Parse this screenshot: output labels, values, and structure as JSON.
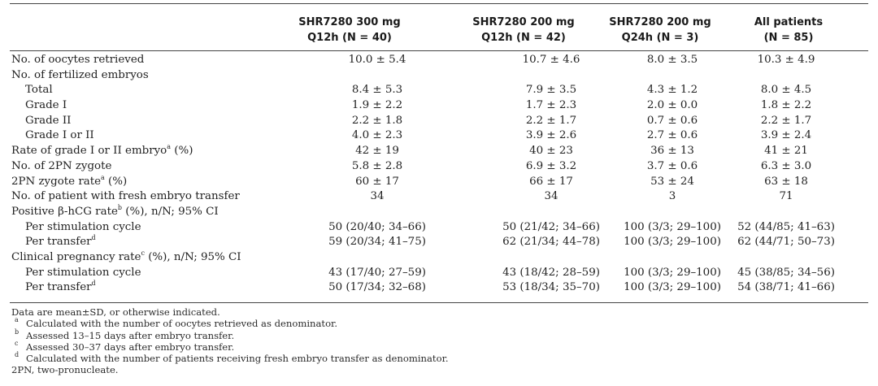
{
  "headers": [
    {
      "line1": "SHR7280 300 mg",
      "line2": "Q12h (N = 40)"
    },
    {
      "line1": "SHR7280 200 mg",
      "line2": "Q12h (N = 42)"
    },
    {
      "line1": "SHR7280 200 mg",
      "line2": "Q24h (N = 3)"
    },
    {
      "line1": "All patients",
      "line2": "(N = 85)"
    }
  ],
  "rows": [
    {
      "label": "No. of oocytes retrieved",
      "sup": "",
      "label_after": "",
      "values": [
        "10.0 ± 5.4",
        "10.7 ± 4.6",
        "8.0 ± 3.5",
        "10.3 ± 4.9"
      ]
    },
    {
      "label": "No. of fertilized embryos",
      "sup": "",
      "label_after": "",
      "values": [
        "",
        "",
        "",
        ""
      ]
    },
    {
      "label": "Total",
      "indent": true,
      "sup": "",
      "label_after": "",
      "values": [
        "8.4 ± 5.3",
        "7.9 ± 3.5",
        "4.3 ± 1.2",
        "8.0 ± 4.5"
      ]
    },
    {
      "label": "Grade I",
      "indent": true,
      "sup": "",
      "label_after": "",
      "values": [
        "1.9 ± 2.2",
        "1.7 ± 2.3",
        "2.0 ± 0.0",
        "1.8 ± 2.2"
      ]
    },
    {
      "label": "Grade II",
      "indent": true,
      "sup": "",
      "label_after": "",
      "values": [
        "2.2 ± 1.8",
        "2.2 ± 1.7",
        "0.7 ± 0.6",
        "2.2 ± 1.7"
      ]
    },
    {
      "label": "Grade I or II",
      "indent": true,
      "sup": "",
      "label_after": "",
      "values": [
        "4.0 ± 2.3",
        "3.9 ± 2.6",
        "2.7 ± 0.6",
        "3.9 ± 2.4"
      ]
    },
    {
      "label": "Rate of grade I or II embryo",
      "sup": "a",
      "label_after": " (%)",
      "values": [
        "42 ± 19",
        "40 ± 23",
        "36 ± 13",
        "41 ± 21"
      ]
    },
    {
      "label": "No. of 2PN zygote",
      "sup": "",
      "label_after": "",
      "values": [
        "5.8 ± 2.8",
        "6.9 ± 3.2",
        "3.7 ± 0.6",
        "6.3 ± 3.0"
      ]
    },
    {
      "label": "2PN zygote rate",
      "sup": "a",
      "label_after": " (%)",
      "values": [
        "60 ± 17",
        "66 ± 17",
        "53 ± 24",
        "63 ± 18"
      ]
    },
    {
      "label": "No. of patient with fresh embryo transfer",
      "sup": "",
      "label_after": "",
      "values": [
        "34",
        "34",
        "3",
        "71"
      ]
    },
    {
      "label": "Positive β-hCG rate",
      "sup": "b",
      "label_after": " (%), n/N; 95% CI",
      "values": [
        "",
        "",
        "",
        ""
      ]
    },
    {
      "label": "Per stimulation cycle",
      "indent": true,
      "sup": "",
      "label_after": "",
      "values": [
        "50 (20/40; 34–66)",
        "50 (21/42; 34–66)",
        "100 (3/3; 29–100)",
        "52 (44/85; 41–63)"
      ]
    },
    {
      "label": "Per transfer",
      "indent": true,
      "sup": "d",
      "label_after": "",
      "values": [
        "59 (20/34; 41–75)",
        "62 (21/34; 44–78)",
        "100 (3/3; 29–100)",
        "62 (44/71; 50–73)"
      ]
    },
    {
      "label": "Clinical pregnancy rate",
      "sup": "c",
      "label_after": " (%), n/N; 95% CI",
      "values": [
        "",
        "",
        "",
        ""
      ]
    },
    {
      "label": "Per stimulation cycle",
      "indent": true,
      "sup": "",
      "label_after": "",
      "values": [
        "43 (17/40; 27–59)",
        "43 (18/42; 28–59)",
        "100 (3/3; 29–100)",
        "45 (38/85; 34–56)"
      ]
    },
    {
      "label": "Per transfer",
      "indent": true,
      "sup": "d",
      "label_after": "",
      "values": [
        "50 (17/34; 32–68)",
        "53 (18/34; 35–70)",
        "100 (3/3; 29–100)",
        "54 (38/71; 41–66)"
      ]
    }
  ],
  "notes": {
    "intro": "Data are mean±SD, or otherwise indicated.",
    "footnotes": [
      {
        "mark": "a",
        "text": "Calculated with the number of oocytes retrieved as denominator."
      },
      {
        "mark": "b",
        "text": "Assessed 13–15 days after embryo transfer."
      },
      {
        "mark": "c",
        "text": "Assessed 30–37 days after embryo transfer."
      },
      {
        "mark": "d",
        "text": "Calculated with the number of patients receiving fresh embryo transfer as denominator."
      }
    ],
    "abbrev": "2PN, two-pronucleate."
  }
}
